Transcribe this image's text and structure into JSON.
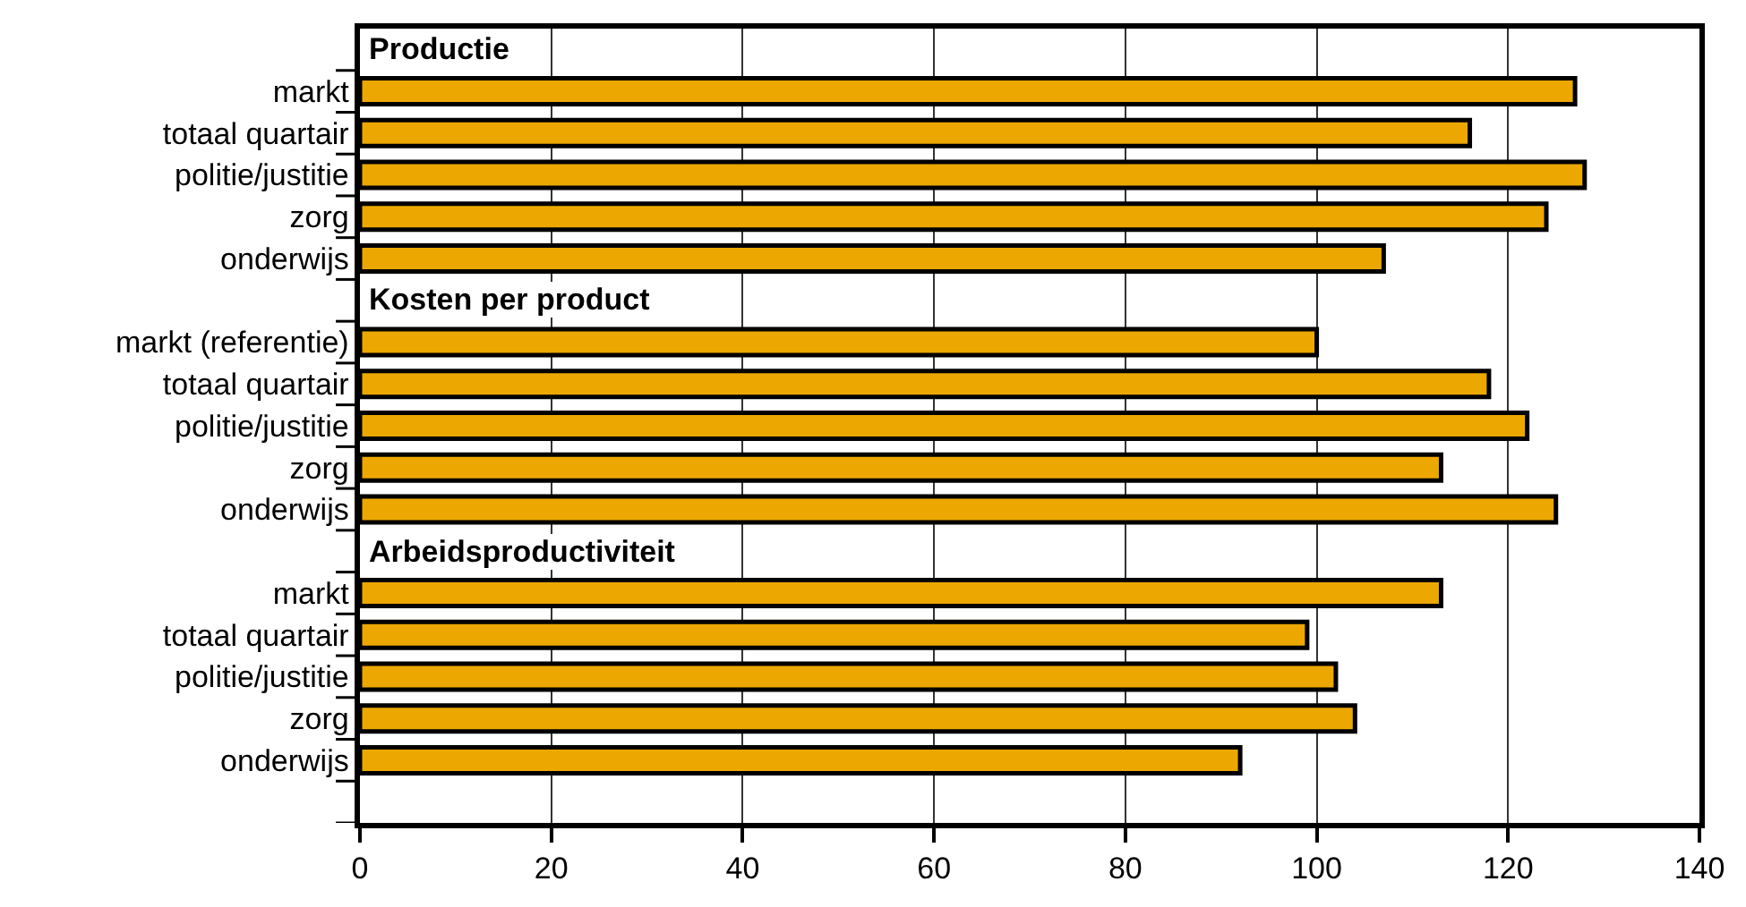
{
  "chart_data": {
    "type": "bar",
    "orientation": "horizontal",
    "categories": [
      null,
      "markt",
      "totaal quartair",
      "politie/justitie",
      "zorg",
      "onderwijs",
      null,
      "markt (referentie)",
      "totaal quartair",
      "politie/justitie",
      "zorg",
      "onderwijs",
      null,
      "markt",
      "totaal quartair",
      "politie/justitie",
      "zorg",
      "onderwijs",
      null
    ],
    "series": [
      {
        "color": "#eca800",
        "values": [
          null,
          127,
          116,
          128,
          124,
          107,
          null,
          100,
          118,
          122,
          113,
          125,
          null,
          113,
          99,
          102,
          104,
          92,
          null
        ]
      }
    ],
    "annotations": [
      "Productie",
      "Kosten per product",
      "Arbeidsproductiviteit"
    ],
    "xlim": [
      0,
      140
    ],
    "xticks": [
      0,
      20,
      40,
      60,
      80,
      100,
      120,
      140
    ],
    "grid": "x",
    "legend": false
  }
}
